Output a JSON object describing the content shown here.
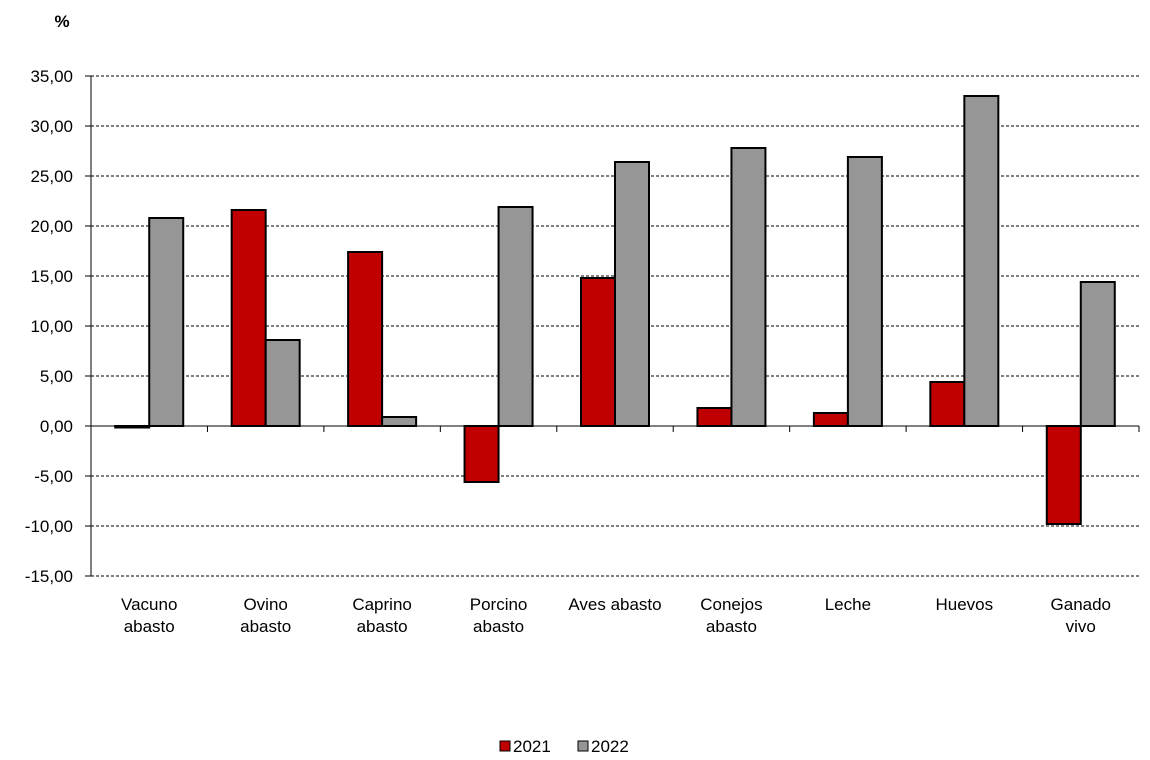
{
  "chart_data": {
    "type": "bar",
    "unit_label": "%",
    "categories": [
      [
        "Vacuno",
        "abasto"
      ],
      [
        "Ovino",
        "abasto"
      ],
      [
        "Caprino",
        "abasto"
      ],
      [
        "Porcino",
        "abasto"
      ],
      [
        "Aves abasto"
      ],
      [
        "Conejos",
        "abasto"
      ],
      [
        "Leche"
      ],
      [
        "Huevos"
      ],
      [
        "Ganado",
        "vivo"
      ]
    ],
    "series": [
      {
        "name": "2021",
        "color": "#c00000",
        "values": [
          -0.1,
          21.6,
          17.4,
          -5.6,
          14.8,
          1.8,
          1.3,
          4.4,
          -9.8
        ]
      },
      {
        "name": "2022",
        "color": "#969696",
        "values": [
          20.8,
          8.6,
          0.9,
          21.9,
          26.4,
          27.8,
          26.9,
          33.0,
          14.4
        ]
      }
    ],
    "ylim": [
      -15,
      35
    ],
    "yticks": [
      "-15,00",
      "-10,00",
      "-5,00",
      "0,00",
      "5,00",
      "10,00",
      "15,00",
      "20,00",
      "25,00",
      "30,00",
      "35,00"
    ],
    "ytick_values": [
      -15,
      -10,
      -5,
      0,
      5,
      10,
      15,
      20,
      25,
      30,
      35
    ],
    "grid": true,
    "legend_position": "bottom-center"
  }
}
